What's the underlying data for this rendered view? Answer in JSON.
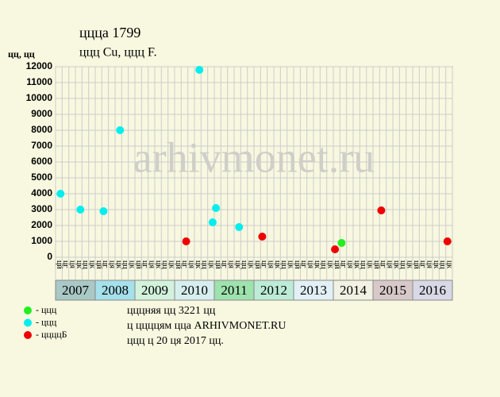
{
  "chart_data": {
    "type": "scatter",
    "title": "ццца 1799",
    "subtitle": "ццц Cu, ццц F.",
    "y_unit": "цц, цц",
    "watermark": "arhivmonet.ru",
    "years": [
      "2007",
      "2008",
      "2009",
      "2010",
      "2011",
      "2012",
      "2013",
      "2014",
      "2015",
      "2016"
    ],
    "year_colors": [
      "#a9c8c6",
      "#a6e0ea",
      "#d2f2dc",
      "#d6eeee",
      "#9ee2ae",
      "#bdebd6",
      "#e2f0f6",
      "#f2f2e4",
      "#d8c8c8",
      "#d8d8e6"
    ],
    "month_labels": [
      "цй",
      "цг",
      "ця",
      "цк",
      "цц",
      "цк"
    ],
    "ylim": [
      0,
      12000
    ],
    "yticks": [
      0,
      1000,
      2000,
      3000,
      4000,
      5000,
      6000,
      7000,
      8000,
      9000,
      10000,
      11000,
      12000
    ],
    "grid": true,
    "series": [
      {
        "name": "- ццц",
        "color": "#22ee22",
        "x": [
          "2014-03"
        ],
        "values": [
          900
        ]
      },
      {
        "name": "- ццц",
        "color": "#00eeee",
        "x": [
          "2007-02",
          "2007-08",
          "2008-03",
          "2008-08",
          "2010-08",
          "2010-12",
          "2011-01",
          "2011-08"
        ],
        "values": [
          4000,
          3000,
          2900,
          8000,
          11800,
          2200,
          3100,
          1900
        ]
      },
      {
        "name": "- ццццБ",
        "color": "#ee0000",
        "x": [
          "2010-04",
          "2012-03",
          "2014-01",
          "2015-03",
          "2016-11"
        ],
        "values": [
          1000,
          1300,
          500,
          2950,
          1000
        ]
      }
    ],
    "notes": [
      "цццняя цц 3221 цц",
      "ц ццццям цца ARHIVMONET.RU",
      "ццц ц 20 ця 2017 цц."
    ]
  }
}
